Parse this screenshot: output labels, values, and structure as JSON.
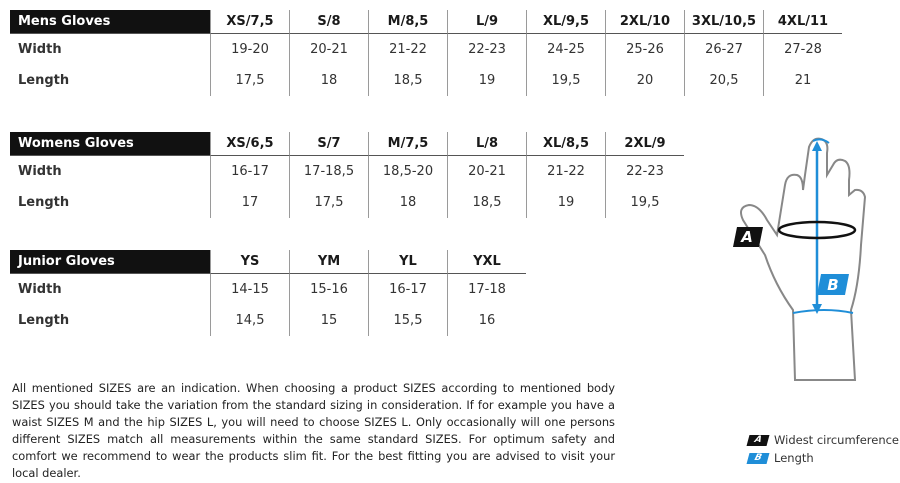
{
  "tables": [
    {
      "title": "Mens Gloves",
      "headers": [
        "XS/7,5",
        "S/8",
        "M/8,5",
        "L/9",
        "XL/9,5",
        "2XL/10",
        "3XL/10,5",
        "4XL/11"
      ],
      "rows": [
        {
          "label": "Width",
          "cells": [
            "19-20",
            "20-21",
            "21-22",
            "22-23",
            "24-25",
            "25-26",
            "26-27",
            "27-28"
          ]
        },
        {
          "label": "Length",
          "cells": [
            "17,5",
            "18",
            "18,5",
            "19",
            "19,5",
            "20",
            "20,5",
            "21"
          ]
        }
      ]
    },
    {
      "title": "Womens Gloves",
      "headers": [
        "XS/6,5",
        "S/7",
        "M/7,5",
        "L/8",
        "XL/8,5",
        "2XL/9"
      ],
      "rows": [
        {
          "label": "Width",
          "cells": [
            "16-17",
            "17-18,5",
            "18,5-20",
            "20-21",
            "21-22",
            "22-23"
          ]
        },
        {
          "label": "Length",
          "cells": [
            "17",
            "17,5",
            "18",
            "18,5",
            "19",
            "19,5"
          ]
        }
      ]
    },
    {
      "title": "Junior Gloves",
      "headers": [
        "YS",
        "YM",
        "YL",
        "YXL"
      ],
      "rows": [
        {
          "label": "Width",
          "cells": [
            "14-15",
            "15-16",
            "16-17",
            "17-18"
          ]
        },
        {
          "label": "Length",
          "cells": [
            "14,5",
            "15",
            "15,5",
            "16"
          ]
        }
      ]
    }
  ],
  "note": "All mentioned SIZES are an indication. When choosing a product SIZES according to mentioned body SIZES you should take the variation from the standard sizing in consideration. If for example you have a waist SIZES M and the hip SIZES L, you will need to choose SIZES L. Only occasionally will one persons different SIZES match all measurements within the same standard SIZES. For optimum safety and comfort we recommend to wear the products slim fit. For the best fitting you are advised to visit your local dealer.",
  "diagram": {
    "a": "A",
    "b": "B"
  },
  "legend": [
    {
      "badge": "A",
      "text": "Widest circumference"
    },
    {
      "badge": "B",
      "text": "Length"
    }
  ]
}
